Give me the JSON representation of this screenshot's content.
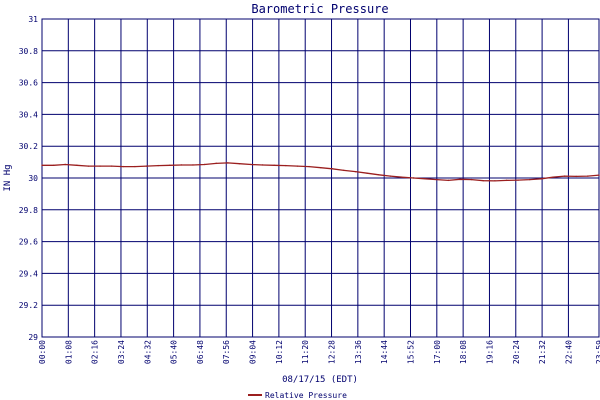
{
  "chart_data": {
    "type": "line",
    "title": "Barometric Pressure",
    "xlabel": "08/17/15 (EDT)",
    "ylabel": "IN Hg",
    "ylim": [
      29,
      31
    ],
    "yticks": [
      "31",
      "30.8",
      "30.6",
      "30.4",
      "30.2",
      "30",
      "29.8",
      "29.6",
      "29.4",
      "29.2",
      "29"
    ],
    "xticks": [
      "00:00",
      "01:08",
      "02:16",
      "03:24",
      "04:32",
      "05:40",
      "06:48",
      "07:56",
      "09:04",
      "10:12",
      "11:20",
      "12:28",
      "13:36",
      "14:44",
      "15:52",
      "17:00",
      "18:08",
      "19:16",
      "20:24",
      "21:32",
      "22:40",
      "23:59"
    ],
    "grid": true,
    "legend_position": "bottom-center",
    "colors": {
      "series": "#9b1f1f",
      "grid": "#00006e",
      "text": "#00006e"
    },
    "series": [
      {
        "name": "Relative Pressure",
        "x": [
          "00:00",
          "00:30",
          "01:00",
          "01:30",
          "02:00",
          "02:30",
          "03:00",
          "03:30",
          "04:00",
          "04:30",
          "05:00",
          "05:30",
          "06:00",
          "06:30",
          "07:00",
          "07:30",
          "08:00",
          "08:30",
          "09:00",
          "09:30",
          "10:00",
          "10:30",
          "11:00",
          "11:30",
          "12:00",
          "12:30",
          "13:00",
          "13:30",
          "14:00",
          "14:30",
          "15:00",
          "15:30",
          "16:00",
          "16:30",
          "17:00",
          "17:30",
          "18:00",
          "18:30",
          "19:00",
          "19:30",
          "20:00",
          "20:30",
          "21:00",
          "21:30",
          "22:00",
          "22:30",
          "23:00",
          "23:30",
          "23:59"
        ],
        "values": [
          30.08,
          30.08,
          30.085,
          30.08,
          30.075,
          30.075,
          30.075,
          30.072,
          30.072,
          30.075,
          30.078,
          30.08,
          30.082,
          30.082,
          30.085,
          30.092,
          30.095,
          30.09,
          30.085,
          30.082,
          30.08,
          30.078,
          30.075,
          30.072,
          30.065,
          30.058,
          30.048,
          30.04,
          30.03,
          30.02,
          30.012,
          30.005,
          30.0,
          29.995,
          29.99,
          29.985,
          29.992,
          29.99,
          29.983,
          29.982,
          29.985,
          29.987,
          29.99,
          29.995,
          30.005,
          30.012,
          30.01,
          30.012,
          30.018
        ]
      }
    ]
  }
}
